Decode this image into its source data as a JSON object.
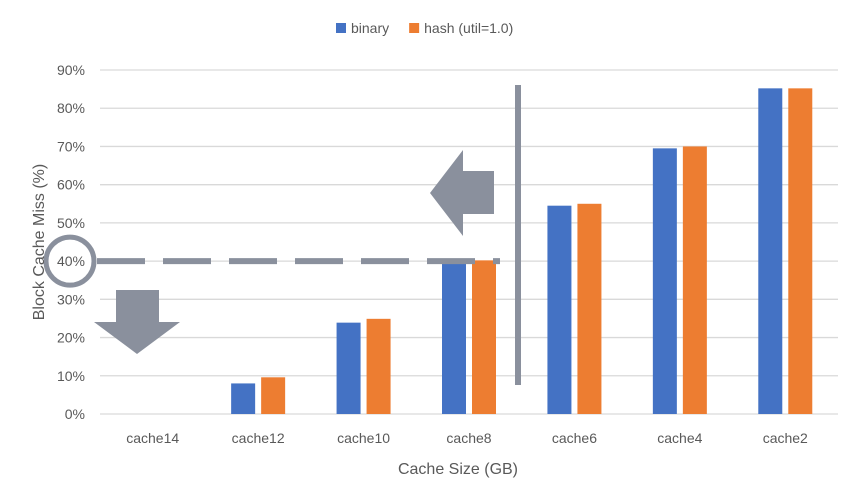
{
  "chart_data": {
    "type": "bar",
    "title": "",
    "xlabel": "Cache Size (GB)",
    "ylabel": "Block Cache Miss (%)",
    "ylim": [
      0,
      90
    ],
    "yticks": [
      "0%",
      "10%",
      "20%",
      "30%",
      "40%",
      "50%",
      "60%",
      "70%",
      "80%",
      "90%"
    ],
    "grid": true,
    "legend_placement": "top",
    "categories": [
      "cache14",
      "cache12",
      "cache10",
      "cache8",
      "cache6",
      "cache4",
      "cache2"
    ],
    "series": [
      {
        "name": "binary",
        "color": "#4472C4",
        "values": [
          0,
          8.0,
          23.9,
          39.5,
          54.5,
          69.5,
          85.2
        ]
      },
      {
        "name": "hash (util=1.0)",
        "color": "#ED7D31",
        "values": [
          0,
          9.6,
          24.9,
          40.2,
          55.0,
          70.0,
          85.2
        ]
      }
    ],
    "annotations": {
      "color": "#8A909D",
      "threshold_line_value": 40,
      "highlighted_tick": "40%",
      "divider_between": [
        "cache8",
        "cache6"
      ],
      "arrows": [
        "left-arrow",
        "down-arrow"
      ]
    }
  }
}
